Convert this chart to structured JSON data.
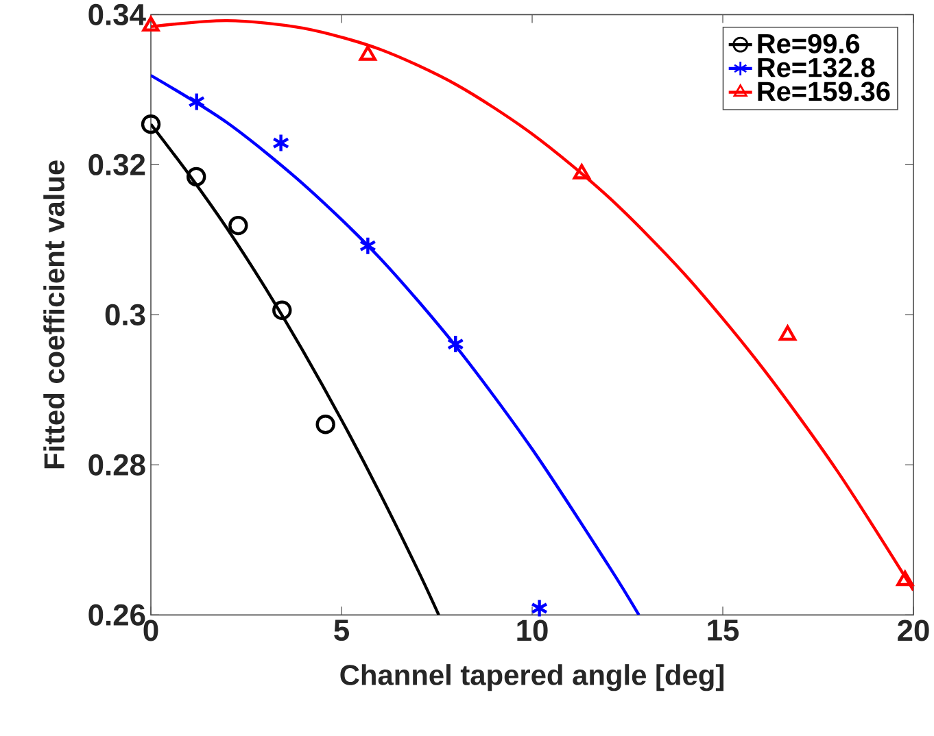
{
  "chart_data": {
    "type": "scatter",
    "xlabel": "Channel tapered angle [deg]",
    "ylabel": "Fitted coefficient value",
    "xlim": [
      0,
      20
    ],
    "ylim": [
      0.26,
      0.34
    ],
    "xticks": [
      0,
      5,
      10,
      15,
      20
    ],
    "yticks": [
      0.26,
      0.28,
      0.3,
      0.32,
      0.34
    ],
    "grid": false,
    "legend": "top right",
    "series": [
      {
        "name": "Re=99.6",
        "color": "#000000",
        "marker": "circle",
        "x": [
          0,
          1.19,
          2.29,
          3.44,
          4.58
        ],
        "values": [
          0.3254,
          0.3184,
          0.3119,
          0.3006,
          0.2854
        ]
      },
      {
        "name": "Re=132.8",
        "color": "#0000ff",
        "marker": "cross",
        "x": [
          1.2,
          3.41,
          5.69,
          7.99,
          10.19
        ],
        "values": [
          0.3284,
          0.3229,
          0.3092,
          0.2961,
          0.2609
        ]
      },
      {
        "name": "Re=159.36",
        "color": "#ff0000",
        "marker": "triangle",
        "x": [
          0,
          5.69,
          11.3,
          16.7,
          19.78
        ],
        "values": [
          0.3385,
          0.3346,
          0.3188,
          0.2973,
          0.2646
        ]
      },
      {
        "type": "line",
        "color": "#000000",
        "x": [
          0,
          1,
          2,
          3,
          4,
          5,
          6,
          7,
          7.55
        ],
        "values": [
          0.3254,
          0.3187,
          0.3115,
          0.3036,
          0.2951,
          0.286,
          0.2763,
          0.266,
          0.26
        ]
      },
      {
        "type": "line",
        "color": "#0000ff",
        "x": [
          0,
          2,
          4,
          6,
          8,
          10,
          12,
          12.8
        ],
        "values": [
          0.3319,
          0.3256,
          0.3174,
          0.3076,
          0.2958,
          0.2821,
          0.2666,
          0.26
        ]
      },
      {
        "type": "line",
        "color": "#ff0000",
        "x": [
          0,
          2,
          4,
          6,
          8,
          10,
          12,
          14,
          16,
          18,
          20
        ],
        "values": [
          0.3384,
          0.3392,
          0.3382,
          0.3354,
          0.3307,
          0.3241,
          0.3157,
          0.3054,
          0.2932,
          0.2792,
          0.2633
        ]
      }
    ]
  }
}
